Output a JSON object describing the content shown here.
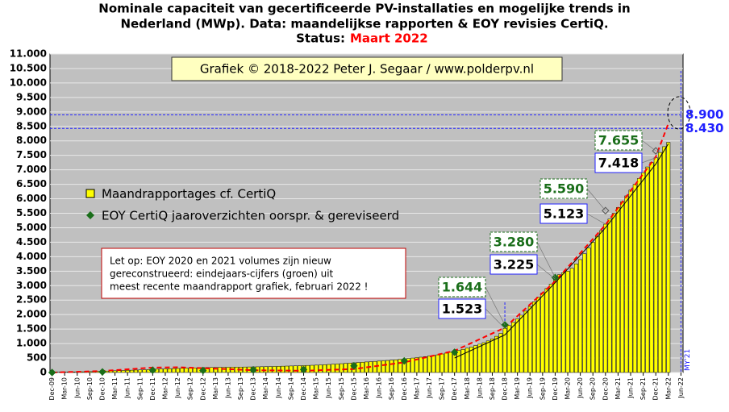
{
  "chart_data": {
    "type": "bar",
    "title": [
      "Nominale  capaciteit  van gecertificeerde  PV-installaties  en mogelijke  trends in",
      "Nederland (MWp). Data: maandelijkse  rapporten & EOY revisies  CertiQ."
    ],
    "status_label": "Status:",
    "status": "Maart 2022",
    "copyright": "Grafiek © 2018-2022 Peter J. Segaar / www.polderpv.nl",
    "note": [
      "Let op: EOY 2020  en 2021 volumes  zijn  nieuw",
      "gereconstrueerd: eindejaars-cijfers  (groen)  uit",
      "meest recente maandrapport  grafiek,  februari 2022  !"
    ],
    "marker_label": "MY'21",
    "categories": [
      "Dec-09",
      null,
      null,
      "Mar-10",
      null,
      null,
      "Jun-10",
      null,
      null,
      "Sep-10",
      null,
      null,
      "Dec-10",
      null,
      null,
      "Mar-11",
      null,
      null,
      "Jun-11",
      null,
      null,
      "Sep-11",
      null,
      null,
      "Dec-11",
      null,
      null,
      "Mar-12",
      null,
      null,
      "Jun-12",
      null,
      null,
      "Sep-12",
      null,
      null,
      "Dec-12",
      null,
      null,
      "Mar-13",
      null,
      null,
      "Jun-13",
      null,
      null,
      "Sep-13",
      null,
      null,
      "Dec-13",
      null,
      null,
      "Mar-14",
      null,
      null,
      "Jun-14",
      null,
      null,
      "Sep-14",
      null,
      null,
      "Dec-14",
      null,
      null,
      "Mar-15",
      null,
      null,
      "Jun-15",
      null,
      null,
      "Sep-15",
      null,
      null,
      "Dec-15",
      null,
      null,
      "Mar-16",
      null,
      null,
      "Jun-16",
      null,
      null,
      "Sep-16",
      null,
      null,
      "Dec-16",
      null,
      null,
      "Mar-17",
      null,
      null,
      "Jun-17",
      null,
      null,
      "Sep-17",
      null,
      null,
      "Dec-17",
      null,
      null,
      "Mar-18",
      null,
      null,
      "Jun-18",
      null,
      null,
      "Sep-18",
      null,
      null,
      "Dec-18",
      null,
      null,
      "Mar-19",
      null,
      null,
      "Jun-19",
      null,
      null,
      "Sep-19",
      null,
      null,
      "Dec-19",
      null,
      null,
      "Mar-20",
      null,
      null,
      "Jun-20",
      null,
      null,
      "Sep-20",
      null,
      null,
      "Dec-20",
      null,
      null,
      "Mar-21",
      null,
      null,
      "Jun-21",
      null,
      null,
      "Sep-21",
      null,
      null,
      "Dec-21",
      null,
      null,
      "Mar-22",
      null,
      null,
      "Jun-22"
    ],
    "series": [
      {
        "name": "Maandrapportages cf. CertiQ",
        "color": "#ffff00",
        "values": [
          10,
          12,
          14,
          16,
          18,
          20,
          23,
          26,
          29,
          32,
          36,
          40,
          45,
          50,
          55,
          60,
          65,
          70,
          75,
          80,
          85,
          90,
          95,
          100,
          110,
          115,
          120,
          125,
          130,
          135,
          140,
          145,
          150,
          155,
          160,
          165,
          170,
          172,
          174,
          176,
          178,
          180,
          182,
          184,
          186,
          188,
          190,
          192,
          195,
          197,
          200,
          203,
          206,
          210,
          214,
          218,
          222,
          226,
          230,
          235,
          240,
          245,
          250,
          255,
          262,
          270,
          278,
          286,
          295,
          305,
          315,
          325,
          335,
          345,
          355,
          365,
          375,
          385,
          395,
          405,
          415,
          425,
          440,
          455,
          470,
          485,
          500,
          515,
          530,
          550,
          570,
          590,
          610,
          640,
          670,
          700,
          730,
          760,
          800,
          840,
          880,
          930,
          980,
          1030,
          1090,
          1160,
          1250,
          1350,
          1523,
          1620,
          1730,
          1850,
          1980,
          2120,
          2280,
          2440,
          2600,
          2750,
          2900,
          3050,
          3225,
          3380,
          3450,
          3500,
          3600,
          3750,
          3900,
          4100,
          4300,
          4500,
          4700,
          4900,
          5123,
          5300,
          5500,
          5700,
          5900,
          6100,
          6300,
          6500,
          6700,
          6900,
          7100,
          7250,
          7418,
          7600,
          7800,
          7950,
          null,
          null,
          null
        ]
      },
      {
        "name": "EOY CertiQ jaaroverzichten oorspr. & gereviseerd",
        "color": "#1a6e1a",
        "x": [
          "Dec-09",
          "Dec-10",
          "Dec-11",
          "Dec-12",
          "Dec-13",
          "Dec-14",
          "Dec-15",
          "Dec-16",
          "Dec-17",
          "Dec-18",
          "Dec-19",
          "Dec-20",
          "Dec-21"
        ],
        "values": [
          0,
          20,
          80,
          70,
          90,
          100,
          230,
          400,
          700,
          1644,
          3280,
          5590,
          7655
        ]
      },
      {
        "color": "#ff0000",
        "style": "dashed",
        "x": [
          "Dec-09",
          "Dec-10",
          "Dec-11",
          "Jun-12",
          "Dec-12",
          "Dec-13",
          "Dec-14",
          "Dec-15",
          "Dec-16",
          "Dec-17",
          "Dec-18",
          "Dec-19",
          "Dec-20",
          "Dec-21",
          "Mar-22"
        ],
        "values": [
          0,
          50,
          170,
          180,
          150,
          80,
          60,
          120,
          350,
          750,
          1550,
          3150,
          5100,
          7450,
          8600
        ]
      },
      {
        "color": "#000000",
        "style": "solid",
        "x": [
          "Dec-17",
          "Dec-18",
          "Dec-19",
          "Dec-20",
          "Dec-21",
          "Mar-22"
        ],
        "values": [
          500,
          1300,
          3100,
          5000,
          7200,
          7900
        ]
      }
    ],
    "annotations": [
      {
        "x": "Dec-18",
        "value": 1644,
        "label": "1.644",
        "color": "#1a6e1a"
      },
      {
        "x": "Dec-18",
        "value": 1523,
        "label": "1.523",
        "color": "#000000"
      },
      {
        "x": "Dec-19",
        "value": 3280,
        "label": "3.280",
        "color": "#1a6e1a"
      },
      {
        "x": "Dec-19",
        "value": 3225,
        "label": "3.225",
        "color": "#000000"
      },
      {
        "x": "Dec-20",
        "value": 5590,
        "label": "5.590",
        "color": "#1a6e1a"
      },
      {
        "x": "Dec-20",
        "value": 5123,
        "label": "5.123",
        "color": "#000000"
      },
      {
        "x": "Dec-21",
        "value": 7655,
        "label": "7.655",
        "color": "#1a6e1a"
      },
      {
        "x": "Dec-21",
        "value": 7418,
        "label": "7.418",
        "color": "#000000"
      }
    ],
    "ref_lines": [
      {
        "value": 8900,
        "label": "8.900"
      },
      {
        "value": 8430,
        "label": "8.430"
      }
    ],
    "ylim": [
      0,
      11000
    ],
    "yticks": [
      0,
      {
        "value": 500,
        "label": "500"
      },
      {
        "value": 1000,
        "label": "1.000"
      },
      {
        "value": 1500,
        "label": "1.500"
      },
      {
        "value": 2000,
        "label": "2.000"
      },
      {
        "value": 2500,
        "label": "2.500"
      },
      {
        "value": 3000,
        "label": "3.000"
      },
      {
        "value": 3500,
        "label": "3.500"
      },
      {
        "value": 4000,
        "label": "4.000"
      },
      {
        "value": 4500,
        "label": "4.500"
      },
      {
        "value": 5000,
        "label": "5.000"
      },
      {
        "value": 5500,
        "label": "5.500"
      },
      {
        "value": 6000,
        "label": "6.000"
      },
      {
        "value": 6500,
        "label": "6.500"
      },
      {
        "value": 7000,
        "label": "7.000"
      },
      {
        "value": 7500,
        "label": "7.500"
      },
      {
        "value": 8000,
        "label": "8.000"
      },
      {
        "value": 8500,
        "label": "8.500"
      },
      {
        "value": 9000,
        "label": "9.000"
      },
      {
        "value": 9500,
        "label": "9.500"
      },
      {
        "value": 10000,
        "label": "10.000"
      },
      {
        "value": 10500,
        "label": "10.500"
      },
      {
        "value": 11000,
        "label": "11.000"
      }
    ],
    "grid": true
  }
}
